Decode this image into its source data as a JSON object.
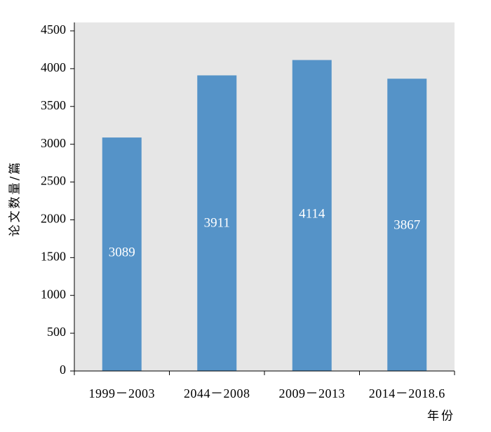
{
  "colors": {
    "plot_background": "#e6e6e6",
    "bar": "#5593c8",
    "axis": "#000000",
    "data_label": "#ffffff"
  },
  "chart_data": {
    "type": "bar",
    "categories": [
      "1999－2003",
      "2044－2008",
      "2009－2013",
      "2014－2018.6"
    ],
    "values": [
      3089,
      3911,
      4114,
      3867
    ],
    "data_labels": [
      "3089",
      "3911",
      "4114",
      "3867"
    ],
    "title": "",
    "xlabel": "年份",
    "ylabel": "论文数量/篇",
    "ylim": [
      0,
      4500
    ],
    "yticks": [
      0,
      500,
      1000,
      1500,
      2000,
      2500,
      3000,
      3500,
      4000,
      4500
    ],
    "ytick_labels": [
      "0",
      "500",
      "1000",
      "1500",
      "2000",
      "2500",
      "3000",
      "3500",
      "4000",
      "4500"
    ],
    "grid": false,
    "legend": "none"
  }
}
